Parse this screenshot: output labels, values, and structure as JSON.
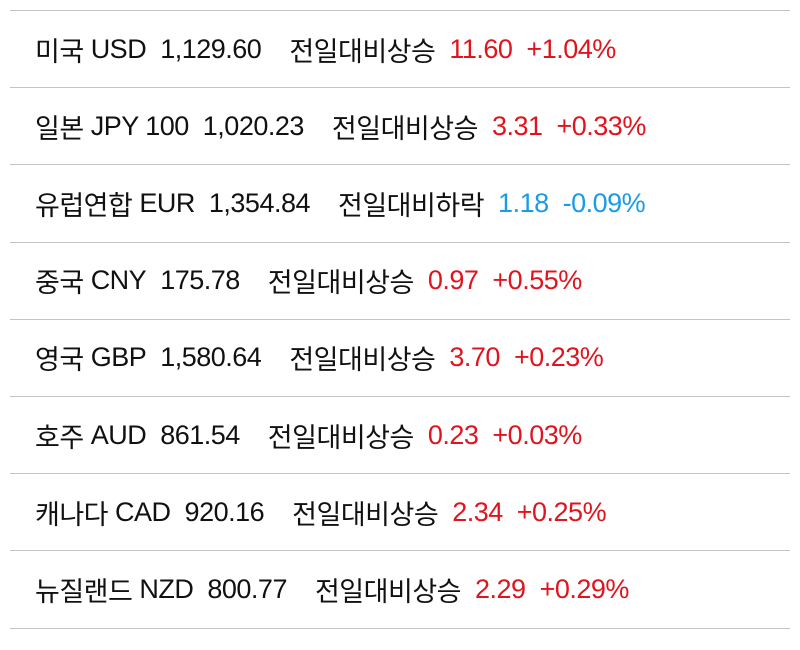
{
  "rows": [
    {
      "name": "미국",
      "code": "USD",
      "rate": "1,129.60",
      "status": "전일대비상승",
      "change": "11.60",
      "percent": "+1.04%",
      "direction": "up"
    },
    {
      "name": "일본",
      "code": "JPY 100",
      "rate": "1,020.23",
      "status": "전일대비상승",
      "change": "3.31",
      "percent": "+0.33%",
      "direction": "up"
    },
    {
      "name": "유럽연합",
      "code": "EUR",
      "rate": "1,354.84",
      "status": "전일대비하락",
      "change": "1.18",
      "percent": "-0.09%",
      "direction": "down"
    },
    {
      "name": "중국",
      "code": "CNY",
      "rate": "175.78",
      "status": "전일대비상승",
      "change": "0.97",
      "percent": "+0.55%",
      "direction": "up"
    },
    {
      "name": "영국",
      "code": "GBP",
      "rate": "1,580.64",
      "status": "전일대비상승",
      "change": "3.70",
      "percent": "+0.23%",
      "direction": "up"
    },
    {
      "name": "호주",
      "code": "AUD",
      "rate": "861.54",
      "status": "전일대비상승",
      "change": "0.23",
      "percent": "+0.03%",
      "direction": "up"
    },
    {
      "name": "캐나다",
      "code": "CAD",
      "rate": "920.16",
      "status": "전일대비상승",
      "change": "2.34",
      "percent": "+0.25%",
      "direction": "up"
    },
    {
      "name": "뉴질랜드",
      "code": "NZD",
      "rate": "800.77",
      "status": "전일대비상승",
      "change": "2.29",
      "percent": "+0.29%",
      "direction": "up"
    }
  ]
}
